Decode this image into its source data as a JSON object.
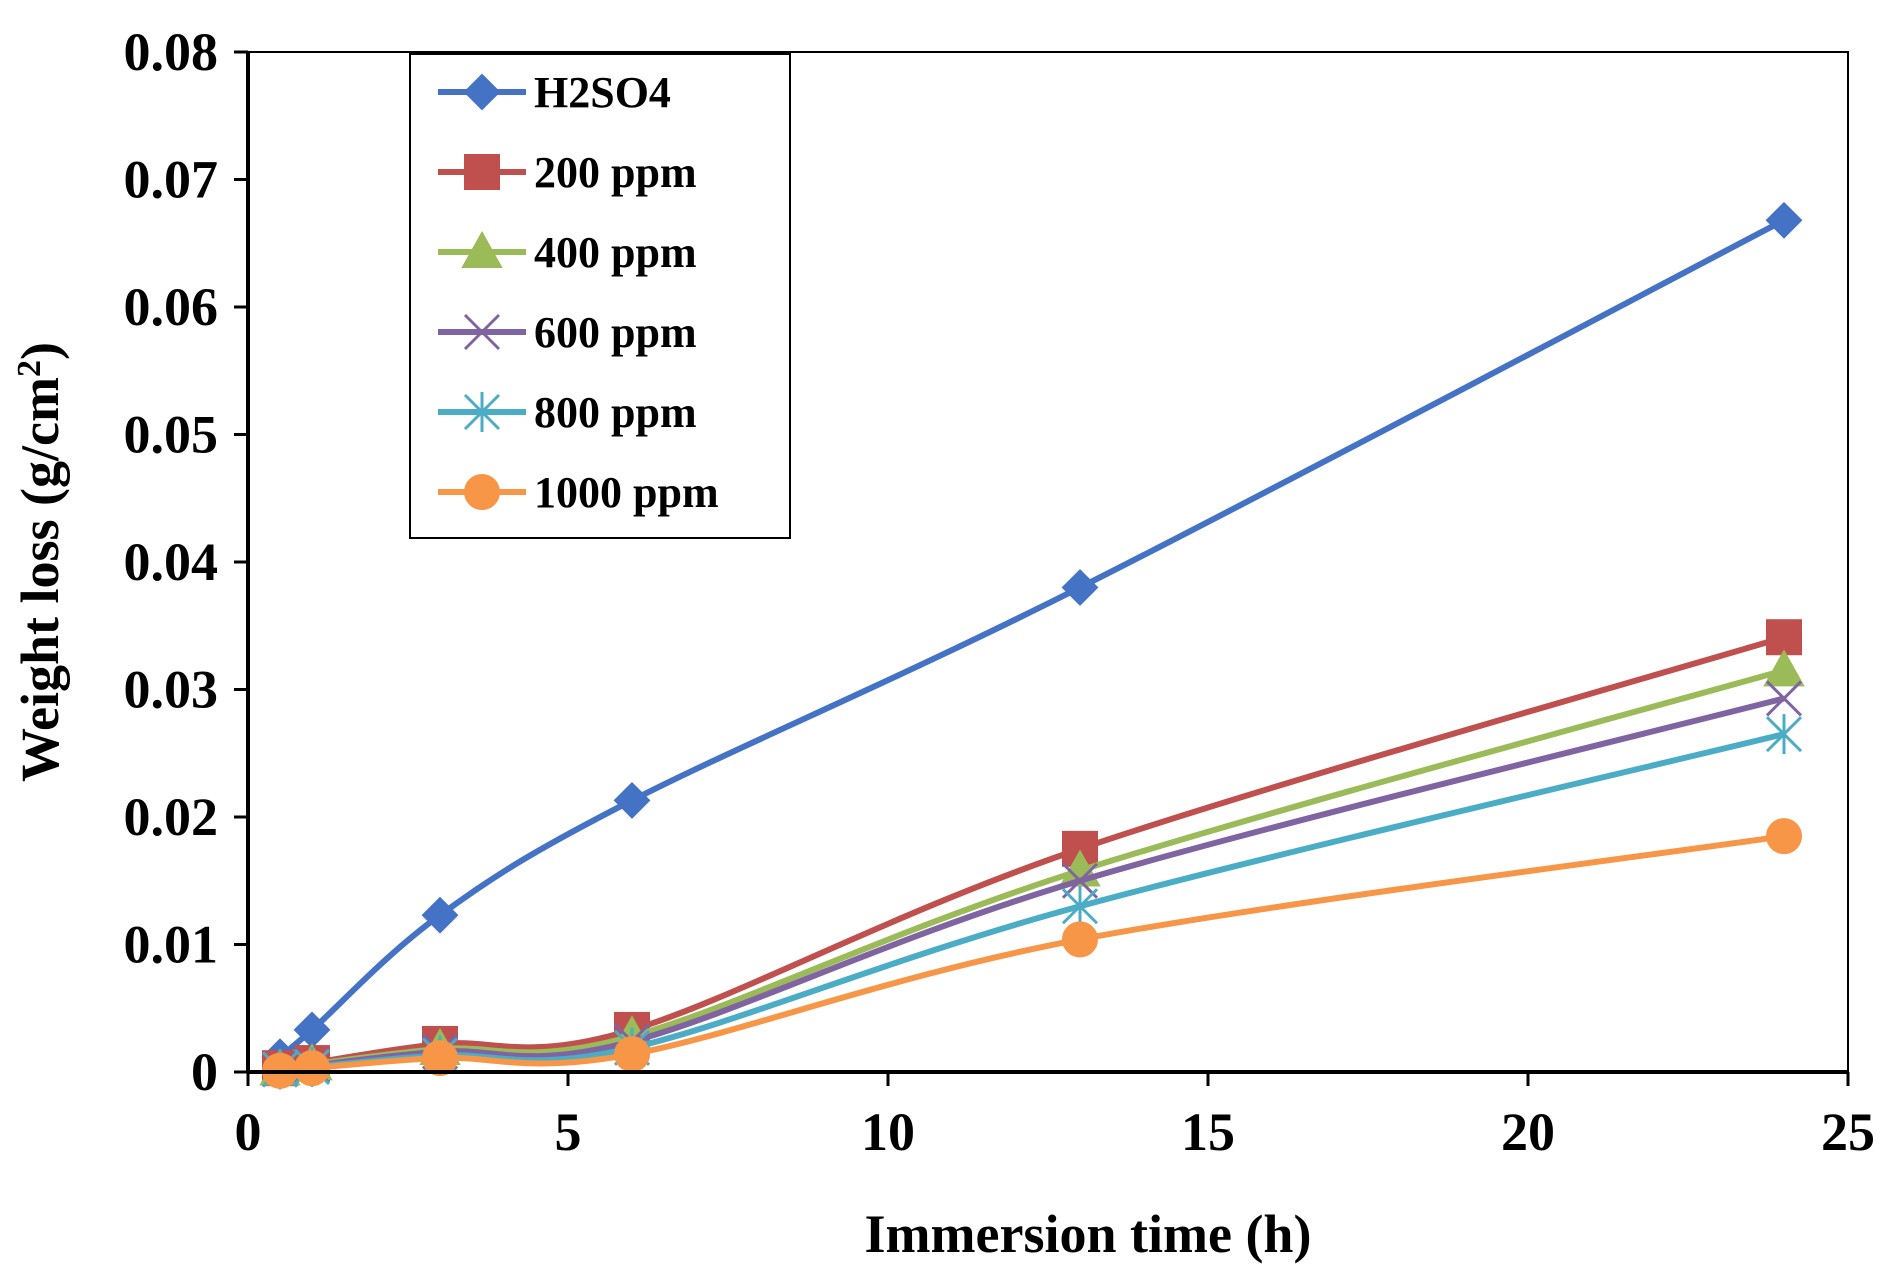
{
  "chart_data": {
    "type": "line",
    "title": "",
    "xlabel": "Immersion time (h)",
    "ylabel": "Weight loss (g/cm",
    "ylabel_superscript": "2",
    "ylabel_close": ")",
    "xlim": [
      0,
      25
    ],
    "ylim": [
      0,
      0.08
    ],
    "x_ticks": [
      0,
      5,
      10,
      15,
      20,
      25
    ],
    "x_tick_labels": [
      "0",
      "5",
      "10",
      "15",
      "20",
      "25"
    ],
    "y_ticks": [
      0,
      0.01,
      0.02,
      0.03,
      0.04,
      0.05,
      0.06,
      0.07,
      0.08
    ],
    "y_tick_labels": [
      "0",
      "0.01",
      "0.02",
      "0.03",
      "0.04",
      "0.05",
      "0.06",
      "0.07",
      "0.08"
    ],
    "grid": false,
    "legend_position": "top-left",
    "x": [
      0.5,
      1,
      3,
      6,
      13,
      24
    ],
    "series": [
      {
        "name": "H2SO4",
        "marker": "diamond",
        "color": "#4472C4",
        "values": [
          0.0012,
          0.0033,
          0.0123,
          0.0213,
          0.038,
          0.0668
        ]
      },
      {
        "name": "200 ppm",
        "marker": "square",
        "color": "#C0504D",
        "values": [
          0.0003,
          0.0007,
          0.0022,
          0.0033,
          0.0175,
          0.0341
        ]
      },
      {
        "name": "400 ppm",
        "marker": "triangle",
        "color": "#9BBB59",
        "values": [
          0.0002,
          0.0006,
          0.0018,
          0.0028,
          0.0158,
          0.0315
        ]
      },
      {
        "name": "600 ppm",
        "marker": "x",
        "color": "#8064A2",
        "values": [
          0.0002,
          0.0005,
          0.0016,
          0.0024,
          0.015,
          0.0293
        ]
      },
      {
        "name": "800 ppm",
        "marker": "star",
        "color": "#4BACC6",
        "values": [
          0.0002,
          0.0004,
          0.0013,
          0.0019,
          0.013,
          0.0265
        ]
      },
      {
        "name": "1000 ppm",
        "marker": "circle",
        "color": "#F79646",
        "values": [
          0.0001,
          0.0003,
          0.0011,
          0.0014,
          0.0104,
          0.0185
        ]
      }
    ]
  }
}
